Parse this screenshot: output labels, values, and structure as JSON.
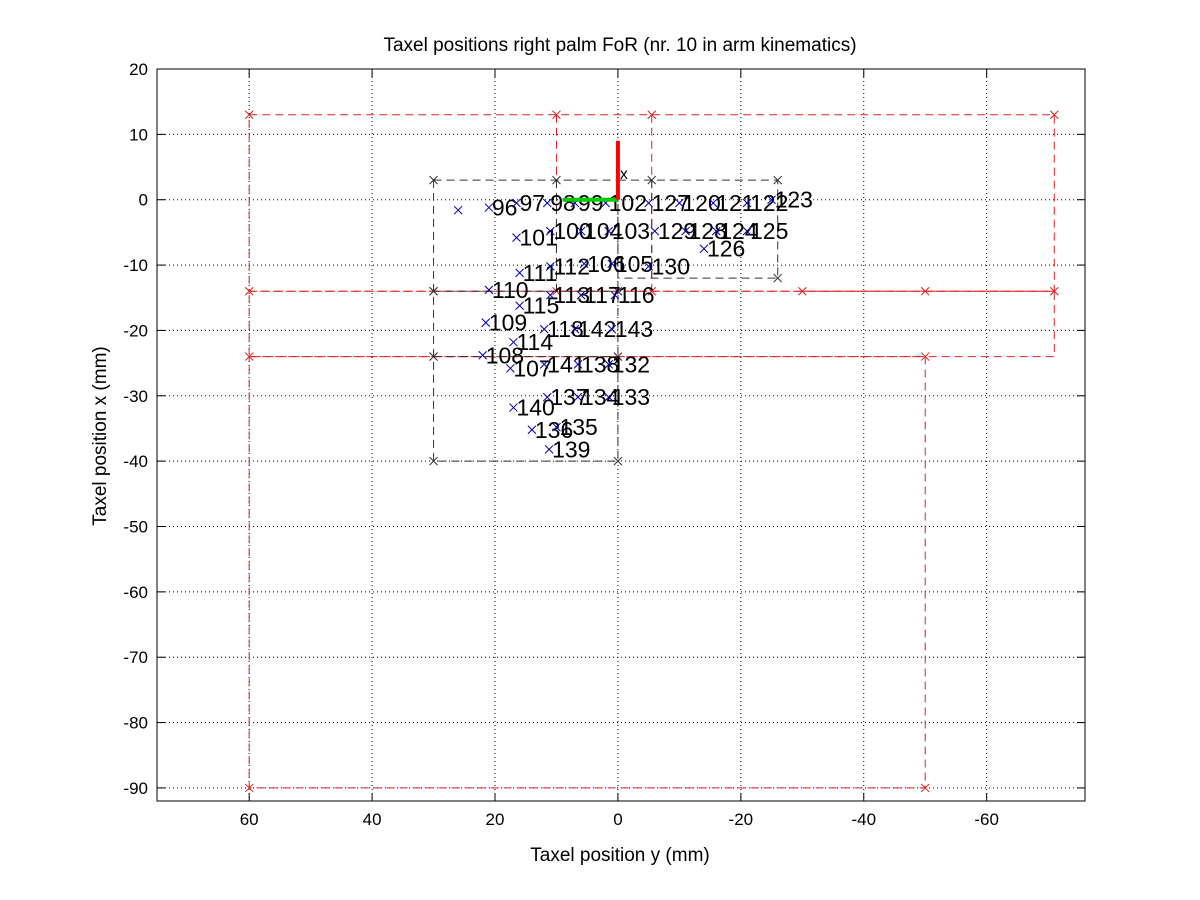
{
  "chart_data": {
    "type": "scatter",
    "title": "Taxel positions right palm FoR (nr. 10 in arm kinematics)",
    "xlabel": "Taxel position y (mm)",
    "ylabel": "Taxel position x (mm)",
    "xlim": [
      75,
      -76
    ],
    "ylim": [
      -92,
      20
    ],
    "x_reversed": true,
    "grid": true,
    "xticks": [
      60,
      40,
      20,
      0,
      -20,
      -40,
      -60
    ],
    "yticks": [
      20,
      10,
      0,
      -10,
      -20,
      -30,
      -40,
      -50,
      -60,
      -70,
      -80,
      -90
    ],
    "colors": {
      "taxels": "#0000aa",
      "palm_outline": "#dd2222",
      "taxel_region": "#333333",
      "frame_x_axis": "#ff0000",
      "frame_y_axis": "#00cc00"
    },
    "taxels": [
      {
        "x": 26.0,
        "y": -1.6,
        "label": ""
      },
      {
        "x": 21.0,
        "y": -1.2,
        "label": "96"
      },
      {
        "x": 16.5,
        "y": -0.5,
        "label": "97"
      },
      {
        "x": 11.5,
        "y": -0.5,
        "label": "98"
      },
      {
        "x": 7.0,
        "y": -0.5,
        "label": "99"
      },
      {
        "x": 2.0,
        "y": -0.5,
        "label": "102"
      },
      {
        "x": -5.0,
        "y": -0.5,
        "label": "127"
      },
      {
        "x": -10.0,
        "y": -0.5,
        "label": "120"
      },
      {
        "x": -15.5,
        "y": -0.5,
        "label": "121"
      },
      {
        "x": -21.0,
        "y": -0.5,
        "label": "122"
      },
      {
        "x": -25.0,
        "y": 0.0,
        "label": "123"
      },
      {
        "x": 16.5,
        "y": -5.8,
        "label": "101"
      },
      {
        "x": 11.0,
        "y": -4.8,
        "label": "100"
      },
      {
        "x": 6.0,
        "y": -4.8,
        "label": "104"
      },
      {
        "x": 1.5,
        "y": -4.8,
        "label": "103"
      },
      {
        "x": -6.0,
        "y": -4.8,
        "label": "129"
      },
      {
        "x": -11.0,
        "y": -4.8,
        "label": "128"
      },
      {
        "x": -16.0,
        "y": -4.8,
        "label": "124"
      },
      {
        "x": -21.0,
        "y": -4.8,
        "label": "125"
      },
      {
        "x": -14.0,
        "y": -7.5,
        "label": "126"
      },
      {
        "x": 16.0,
        "y": -11.2,
        "label": "111"
      },
      {
        "x": 11.0,
        "y": -10.2,
        "label": "112"
      },
      {
        "x": 5.5,
        "y": -9.8,
        "label": "106"
      },
      {
        "x": 1.0,
        "y": -9.8,
        "label": "105"
      },
      {
        "x": -5.0,
        "y": -10.2,
        "label": "130"
      },
      {
        "x": 21.0,
        "y": -13.8,
        "label": "110"
      },
      {
        "x": 16.0,
        "y": -16.2,
        "label": "115"
      },
      {
        "x": 11.0,
        "y": -14.6,
        "label": "113"
      },
      {
        "x": 6.0,
        "y": -14.6,
        "label": "117"
      },
      {
        "x": 0.5,
        "y": -14.6,
        "label": "116"
      },
      {
        "x": 21.5,
        "y": -18.8,
        "label": "109"
      },
      {
        "x": 17.0,
        "y": -21.8,
        "label": "114"
      },
      {
        "x": 12.0,
        "y": -19.8,
        "label": "118"
      },
      {
        "x": 7.0,
        "y": -19.8,
        "label": "142"
      },
      {
        "x": 1.0,
        "y": -19.8,
        "label": "143"
      },
      {
        "x": 22.0,
        "y": -23.8,
        "label": "108"
      },
      {
        "x": 17.5,
        "y": -25.8,
        "label": "107"
      },
      {
        "x": 12.0,
        "y": -25.2,
        "label": "141"
      },
      {
        "x": 6.5,
        "y": -25.2,
        "label": "138"
      },
      {
        "x": 1.5,
        "y": -25.2,
        "label": "132"
      },
      {
        "x": 17.0,
        "y": -31.8,
        "label": "140"
      },
      {
        "x": 11.5,
        "y": -30.2,
        "label": "137"
      },
      {
        "x": 6.5,
        "y": -30.2,
        "label": "134"
      },
      {
        "x": 1.5,
        "y": -30.2,
        "label": "133"
      },
      {
        "x": 14.0,
        "y": -35.2,
        "label": "136"
      },
      {
        "x": 10.0,
        "y": -34.8,
        "label": "135"
      },
      {
        "x": 11.2,
        "y": -38.2,
        "label": "139"
      }
    ],
    "palm_outline_vertices": [
      [
        60,
        13
      ],
      [
        10,
        13
      ],
      [
        -5.5,
        13
      ],
      [
        -71,
        13
      ],
      [
        60,
        -14
      ],
      [
        30,
        -14
      ],
      [
        10,
        -14
      ],
      [
        -5.5,
        -14
      ],
      [
        -30,
        -14
      ],
      [
        -50,
        -14
      ],
      [
        -71,
        -14
      ],
      [
        60,
        -24
      ],
      [
        30,
        -24
      ],
      [
        0,
        -24
      ],
      [
        -50,
        -24
      ],
      [
        60,
        -90
      ],
      [
        -50,
        -90
      ]
    ],
    "taxel_region_vertices": [
      [
        30,
        3
      ],
      [
        10,
        3
      ],
      [
        -5.5,
        3
      ],
      [
        -26,
        3
      ],
      [
        -26,
        -12
      ],
      [
        30,
        -14
      ],
      [
        0,
        -14
      ],
      [
        30,
        -24
      ],
      [
        0,
        -24
      ],
      [
        30,
        -40
      ],
      [
        0,
        -40
      ]
    ],
    "frame_origin": [
      0,
      0
    ],
    "frame_x_axis_end": [
      0,
      9
    ],
    "frame_y_axis_end": [
      9,
      0
    ],
    "frame_axis_label": "x"
  }
}
